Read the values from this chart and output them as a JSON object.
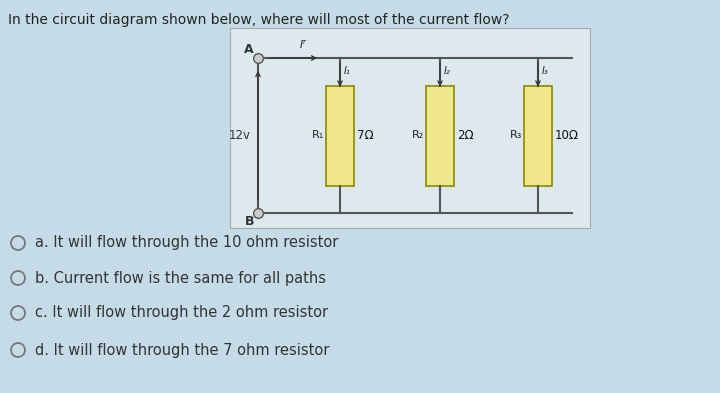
{
  "title": "In the circuit diagram shown below, where will most of the current flow?",
  "bg_color": "#c5dce8",
  "diagram_bg": "#dde8ef",
  "resistor_fill": "#f0e68c",
  "resistor_border": "#8b8b00",
  "wire_color": "#555555",
  "options": [
    "a. It will flow through the 10 ohm resistor",
    "b. Current flow is the same for all paths",
    "c. It will flow through the 2 ohm resistor",
    "d. It will flow through the 7 ohm resistor"
  ],
  "resistors": [
    {
      "label": "R₁",
      "value": "7Ω"
    },
    {
      "label": "R₂",
      "value": "2Ω"
    },
    {
      "label": "R₃",
      "value": "10Ω"
    }
  ],
  "voltage": "12v",
  "node_a": "A",
  "node_b": "B",
  "current_labels": [
    "I₁",
    "I₂",
    "I₃"
  ],
  "total_current": "Iᵀ"
}
